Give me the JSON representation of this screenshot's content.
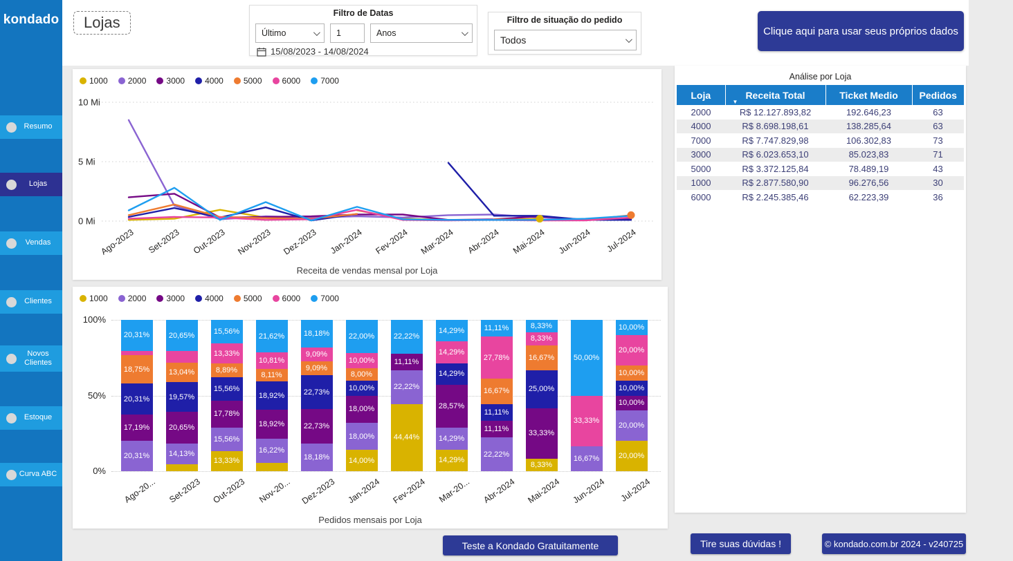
{
  "sidebar": {
    "logo": "kondado",
    "items": [
      {
        "label": "Resumo",
        "active": false
      },
      {
        "label": "Lojas",
        "active": true
      },
      {
        "label": "Vendas",
        "active": false
      },
      {
        "label": "Clientes",
        "active": false
      },
      {
        "label": "Novos Clientes",
        "active": false
      },
      {
        "label": "Estoque",
        "active": false
      },
      {
        "label": "Curva ABC",
        "active": false
      }
    ]
  },
  "header": {
    "page_title": "Lojas",
    "date_filter": {
      "title": "Filtro de Datas",
      "period_label": "Último",
      "period_value": "1",
      "period_unit": "Anos",
      "range": "15/08/2023 - 14/08/2024"
    },
    "status_filter": {
      "title": "Filtro de situação do pedido",
      "value": "Todos"
    },
    "cta_button": "Clique aqui para usar seus próprios dados"
  },
  "chart_data": [
    {
      "type": "line",
      "title": "Receita de vendas mensal por Loja",
      "x": [
        "Ago-2023",
        "Set-2023",
        "Out-2023",
        "Nov-2023",
        "Dez-2023",
        "Jan-2024",
        "Fev-2024",
        "Mar-2024",
        "Abr-2024",
        "Mai-2024",
        "Jun-2024",
        "Jul-2024"
      ],
      "y_ticks": [
        {
          "label": "10 Mi",
          "value": 10
        },
        {
          "label": "5 Mi",
          "value": 5
        },
        {
          "label": "0 Mi",
          "value": 0
        }
      ],
      "ylim": [
        0,
        10
      ],
      "unit": "Mi",
      "grid": "dotted",
      "legend_position": "top-left",
      "series": [
        {
          "name": "1000",
          "color": "#D9B300",
          "values_mi": [
            0.1,
            0.2,
            0.95,
            0.3,
            null,
            0.9,
            0.2,
            0.1,
            0.1,
            0.2,
            null,
            0.15
          ]
        },
        {
          "name": "2000",
          "color": "#8A64D2",
          "values_mi": [
            8.5,
            1.3,
            0.15,
            0.4,
            0.3,
            0.4,
            0.3,
            0.5,
            0.55,
            0.3,
            0.15,
            0.2
          ]
        },
        {
          "name": "3000",
          "color": "#750985",
          "values_mi": [
            2.0,
            2.3,
            0.3,
            0.35,
            0.4,
            0.55,
            0.55,
            0.1,
            0.15,
            0.4,
            0.1,
            0.15
          ]
        },
        {
          "name": "4000",
          "color": "#1F1FA8",
          "values_mi": [
            0.35,
            1.1,
            0.3,
            1.15,
            0.05,
            0.6,
            null,
            4.9,
            0.45,
            0.45,
            0.1,
            0.1
          ]
        },
        {
          "name": "5000",
          "color": "#EE7B30",
          "values_mi": [
            0.5,
            1.4,
            0.35,
            0.25,
            0.2,
            0.6,
            null,
            null,
            0.15,
            0.1,
            0.1,
            0.5
          ]
        },
        {
          "name": "6000",
          "color": "#E8459F",
          "values_mi": [
            0.2,
            0.35,
            0.3,
            0.1,
            0.15,
            0.95,
            0.1,
            0.05,
            0.1,
            0.05,
            0.05,
            0.3
          ]
        },
        {
          "name": "7000",
          "color": "#1E9EF0",
          "values_mi": [
            0.9,
            2.8,
            0.1,
            1.6,
            0.05,
            1.2,
            0.15,
            0.1,
            0.1,
            0.1,
            0.2,
            0.45
          ]
        }
      ],
      "markers": [
        {
          "series": "1000",
          "month_index": 9
        },
        {
          "series": "5000",
          "month_index": 11
        }
      ]
    },
    {
      "type": "stacked-bar-100",
      "title": "Pedidos mensais por Loja",
      "x": [
        "Ago-20...",
        "Set-2023",
        "Out-2023",
        "Nov-20...",
        "Dez-2023",
        "Jan-2024",
        "Fev-2024",
        "Mar-20...",
        "Abr-2024",
        "Mai-2024",
        "Jun-2024",
        "Jul-2024"
      ],
      "y_ticks": [
        {
          "label": "100%",
          "value": 100
        },
        {
          "label": "50%",
          "value": 50
        },
        {
          "label": "0%",
          "value": 0
        }
      ],
      "ylim": [
        0,
        100
      ],
      "grid": "dotted",
      "legend_position": "top-left",
      "label_threshold_pct": 8,
      "series": [
        {
          "name": "1000",
          "color": "#D9B300",
          "values_pct": [
            0,
            4.35,
            13.33,
            5.41,
            0,
            14.0,
            44.44,
            14.29,
            0,
            8.33,
            0,
            20.0
          ]
        },
        {
          "name": "2000",
          "color": "#8A64D2",
          "values_pct": [
            20.31,
            14.13,
            15.56,
            16.22,
            18.18,
            18.0,
            22.22,
            14.29,
            22.22,
            0,
            16.67,
            20.0
          ]
        },
        {
          "name": "3000",
          "color": "#750985",
          "values_pct": [
            17.19,
            20.65,
            17.78,
            18.92,
            22.73,
            18.0,
            11.11,
            28.57,
            11.11,
            33.33,
            0,
            10.0
          ]
        },
        {
          "name": "4000",
          "color": "#1F1FA8",
          "values_pct": [
            20.31,
            19.57,
            15.56,
            18.92,
            22.73,
            10.0,
            0,
            14.29,
            11.11,
            25.0,
            0,
            10.0
          ]
        },
        {
          "name": "5000",
          "color": "#EE7B30",
          "values_pct": [
            18.75,
            13.04,
            8.89,
            8.11,
            9.09,
            8.0,
            0,
            0,
            16.67,
            16.67,
            0,
            10.0
          ]
        },
        {
          "name": "6000",
          "color": "#E8459F",
          "values_pct": [
            3.13,
            7.61,
            13.33,
            10.81,
            9.09,
            10.0,
            0,
            14.29,
            27.78,
            8.33,
            33.33,
            20.0
          ]
        },
        {
          "name": "7000",
          "color": "#1E9EF0",
          "values_pct": [
            20.31,
            20.65,
            15.56,
            21.62,
            18.18,
            22.0,
            22.22,
            14.29,
            11.11,
            8.33,
            50.0,
            10.0
          ]
        }
      ]
    }
  ],
  "table": {
    "title": "Análise por Loja",
    "columns": [
      "Loja",
      "Receita Total",
      "Ticket Medio",
      "Pedidos"
    ],
    "sorted_by": "Receita Total",
    "sort_direction": "desc",
    "rows": [
      [
        "2000",
        "R$ 12.127.893,82",
        "192.646,23",
        "63"
      ],
      [
        "4000",
        "R$ 8.698.198,61",
        "138.285,64",
        "63"
      ],
      [
        "7000",
        "R$ 7.747.829,98",
        "106.302,83",
        "73"
      ],
      [
        "3000",
        "R$ 6.023.653,10",
        "85.023,83",
        "71"
      ],
      [
        "5000",
        "R$ 3.372.125,84",
        "78.489,19",
        "43"
      ],
      [
        "1000",
        "R$ 2.877.580,90",
        "96.276,56",
        "30"
      ],
      [
        "6000",
        "R$ 2.245.385,46",
        "62.223,39",
        "36"
      ]
    ]
  },
  "footer": {
    "try_button": "Teste a Kondado Gratuitamente",
    "help_button": "Tire suas dúvidas !",
    "copyright_button": "© kondado.com.br 2024 - v240725"
  },
  "colors": {
    "sidebar_bg": "#1375BF",
    "sidebar_item": "#1F9CDF",
    "sidebar_active": "#2D3192",
    "navy_button": "#2D3A96",
    "table_header": "#1A7DC9",
    "table_text": "#3D4077"
  }
}
